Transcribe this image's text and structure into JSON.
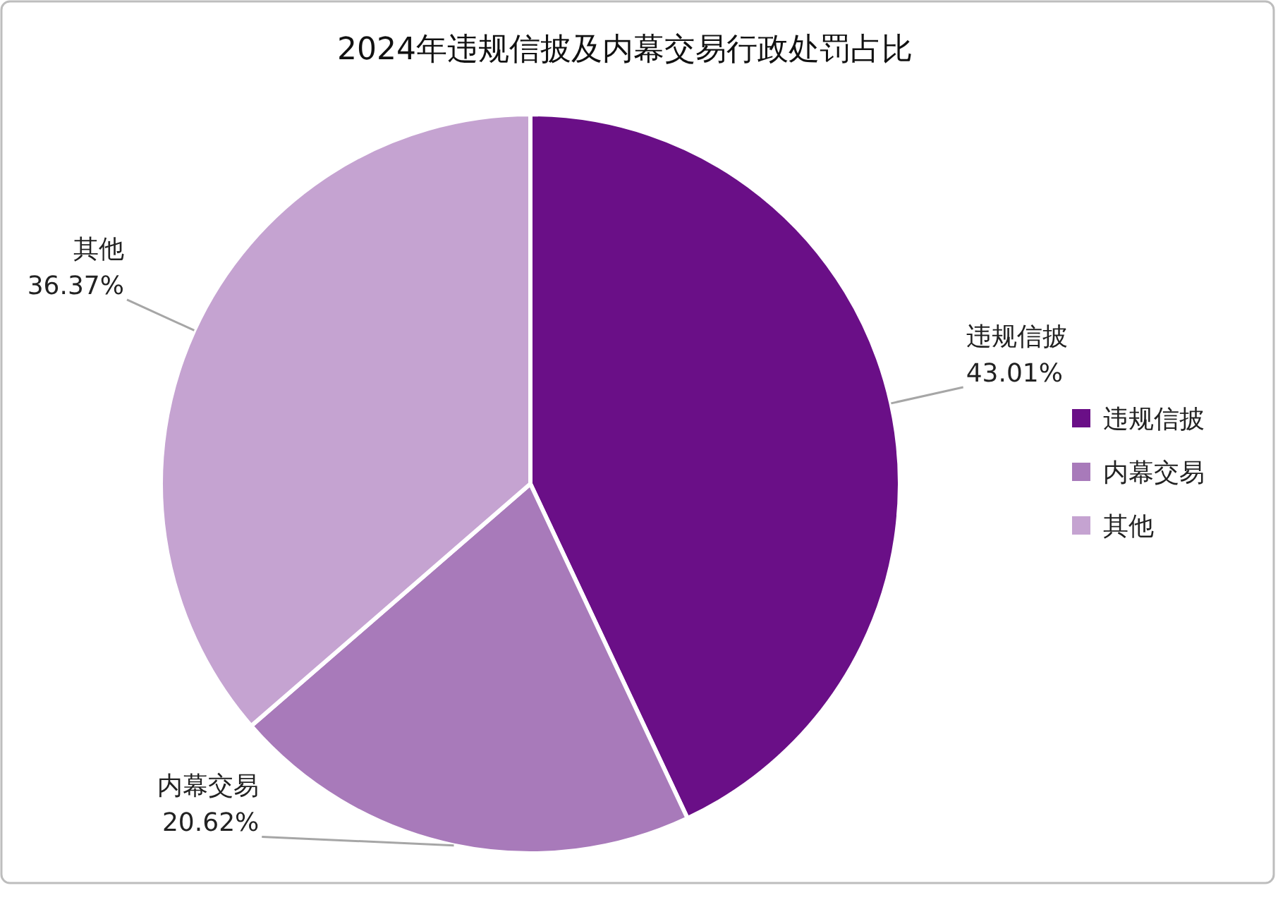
{
  "chart_data": {
    "type": "pie",
    "title": "2024年违规信披及内幕交易行政处罚占比",
    "categories": [
      "违规信披",
      "内幕交易",
      "其他"
    ],
    "values": [
      43.01,
      20.62,
      36.37
    ],
    "value_labels": [
      "43.01%",
      "20.62%",
      "36.37%"
    ],
    "colors": [
      "#6a0f87",
      "#a87aba",
      "#c5a3d1"
    ],
    "legend": "right"
  }
}
